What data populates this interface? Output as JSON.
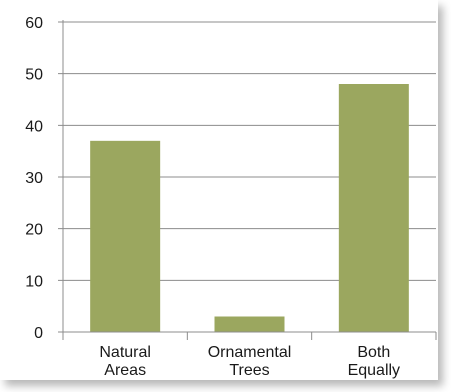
{
  "chart_data": {
    "type": "bar",
    "categories": [
      "Natural Areas",
      "Ornamental Trees",
      "Both Equally"
    ],
    "category_lines": [
      [
        "Natural",
        "Areas"
      ],
      [
        "Ornamental",
        "Trees"
      ],
      [
        "Both",
        "Equally"
      ]
    ],
    "values": [
      37,
      3,
      48
    ],
    "title": "",
    "xlabel": "",
    "ylabel": "",
    "ylim": [
      0,
      60
    ],
    "yticks": [
      0,
      10,
      20,
      30,
      40,
      50,
      60
    ],
    "grid": true,
    "legend": "none",
    "bar_color": "#9BA75F",
    "grid_color": "#8c8c8c",
    "axis_color": "#8c8c8c"
  }
}
